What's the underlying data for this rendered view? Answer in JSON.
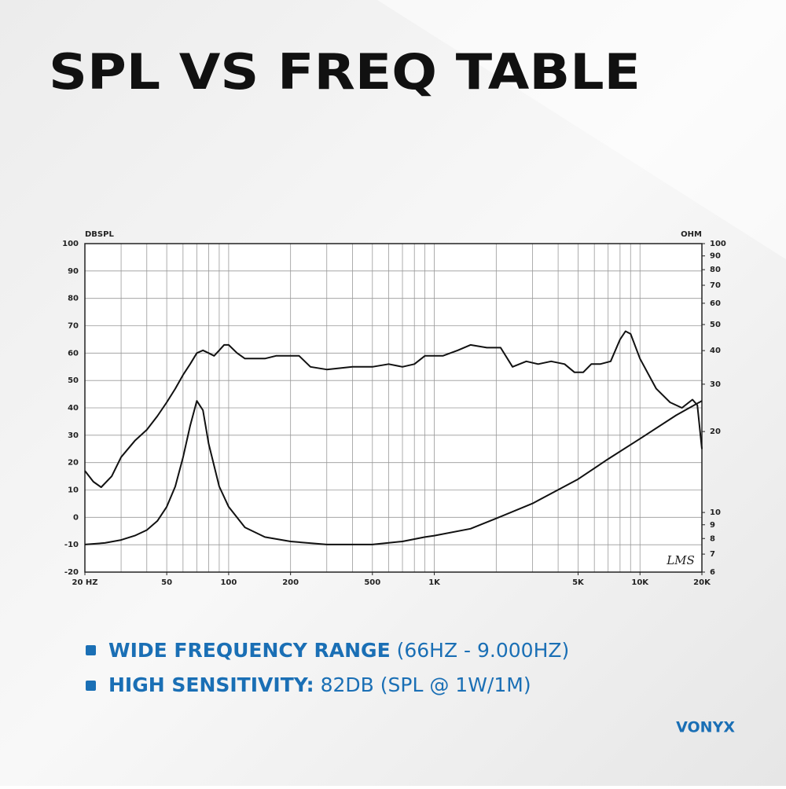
{
  "chart_data": {
    "type": "line",
    "title": "SPL VS FREQ TABLE",
    "ylabel": "DBSPL",
    "y2label": "OHM",
    "annotation": "LMS",
    "xscale": "log",
    "y2scale": "log",
    "grid": true,
    "xlim": [
      20,
      20000
    ],
    "ylim": [
      -20,
      100
    ],
    "y2lim": [
      6,
      100
    ],
    "xticks": [
      {
        "value": 20,
        "label": "20 HZ"
      },
      50,
      100,
      200,
      500,
      {
        "value": 1000,
        "label": "1K"
      },
      {
        "value": 5000,
        "label": "5K"
      },
      {
        "value": 10000,
        "label": "10K"
      },
      {
        "value": 20000,
        "label": "20K"
      }
    ],
    "xgrid": [
      20,
      30,
      40,
      50,
      60,
      70,
      80,
      90,
      100,
      200,
      300,
      400,
      500,
      600,
      700,
      800,
      900,
      1000,
      2000,
      3000,
      4000,
      5000,
      6000,
      7000,
      8000,
      9000,
      10000,
      20000
    ],
    "yticks": [
      -20,
      -10,
      0,
      10,
      20,
      30,
      40,
      50,
      60,
      70,
      80,
      90,
      100
    ],
    "y2ticks": [
      6,
      7,
      8,
      9,
      10,
      20,
      30,
      40,
      50,
      60,
      70,
      80,
      90,
      100
    ],
    "series": [
      {
        "color": "#111111",
        "x": [
          20,
          22,
          24,
          27,
          30,
          35,
          40,
          45,
          50,
          55,
          60,
          65,
          70,
          75,
          80,
          85,
          90,
          95,
          100,
          110,
          120,
          150,
          170,
          200,
          220,
          250,
          300,
          400,
          500,
          600,
          700,
          800,
          900,
          1000,
          1100,
          1300,
          1500,
          1800,
          2100,
          2400,
          2800,
          3200,
          3700,
          4300,
          4800,
          5300,
          5800,
          6400,
          7200,
          8000,
          8500,
          9000,
          10000,
          12000,
          14000,
          16000,
          18000,
          19000,
          20000
        ],
        "values": [
          17,
          13,
          11,
          15,
          22,
          28,
          32,
          37,
          42,
          47,
          52,
          56,
          60,
          61,
          60,
          59,
          61,
          63,
          63,
          60,
          58,
          58,
          59,
          59,
          59,
          55,
          54,
          55,
          55,
          56,
          55,
          56,
          59,
          59,
          59,
          61,
          63,
          62,
          62,
          55,
          57,
          56,
          57,
          56,
          53,
          53,
          56,
          56,
          57,
          65,
          68,
          67,
          58,
          47,
          42,
          40,
          43,
          41,
          25
        ]
      },
      {
        "color": "#111111",
        "axis": "y2",
        "x": [
          20,
          25,
          30,
          35,
          40,
          45,
          50,
          55,
          60,
          65,
          70,
          75,
          80,
          90,
          100,
          120,
          150,
          200,
          300,
          400,
          500,
          700,
          900,
          1000,
          1500,
          2000,
          3000,
          5000,
          7000,
          10000,
          15000,
          20000
        ],
        "values": [
          7.6,
          7.7,
          7.9,
          8.2,
          8.6,
          9.3,
          10.5,
          12.5,
          16,
          21,
          26,
          24,
          18,
          12.5,
          10.5,
          8.8,
          8.1,
          7.8,
          7.6,
          7.6,
          7.6,
          7.8,
          8.1,
          8.2,
          8.7,
          9.5,
          10.8,
          13.3,
          15.8,
          18.8,
          23,
          26
        ]
      }
    ]
  },
  "bullets": [
    {
      "bold": "WIDE FREQUENCY RANGE",
      "text": " (66HZ - 9.000HZ)"
    },
    {
      "bold": "HIGH SENSITIVITY:",
      "text": " 82DB (SPL @ 1W/1M)"
    }
  ],
  "brand": "VONYX"
}
